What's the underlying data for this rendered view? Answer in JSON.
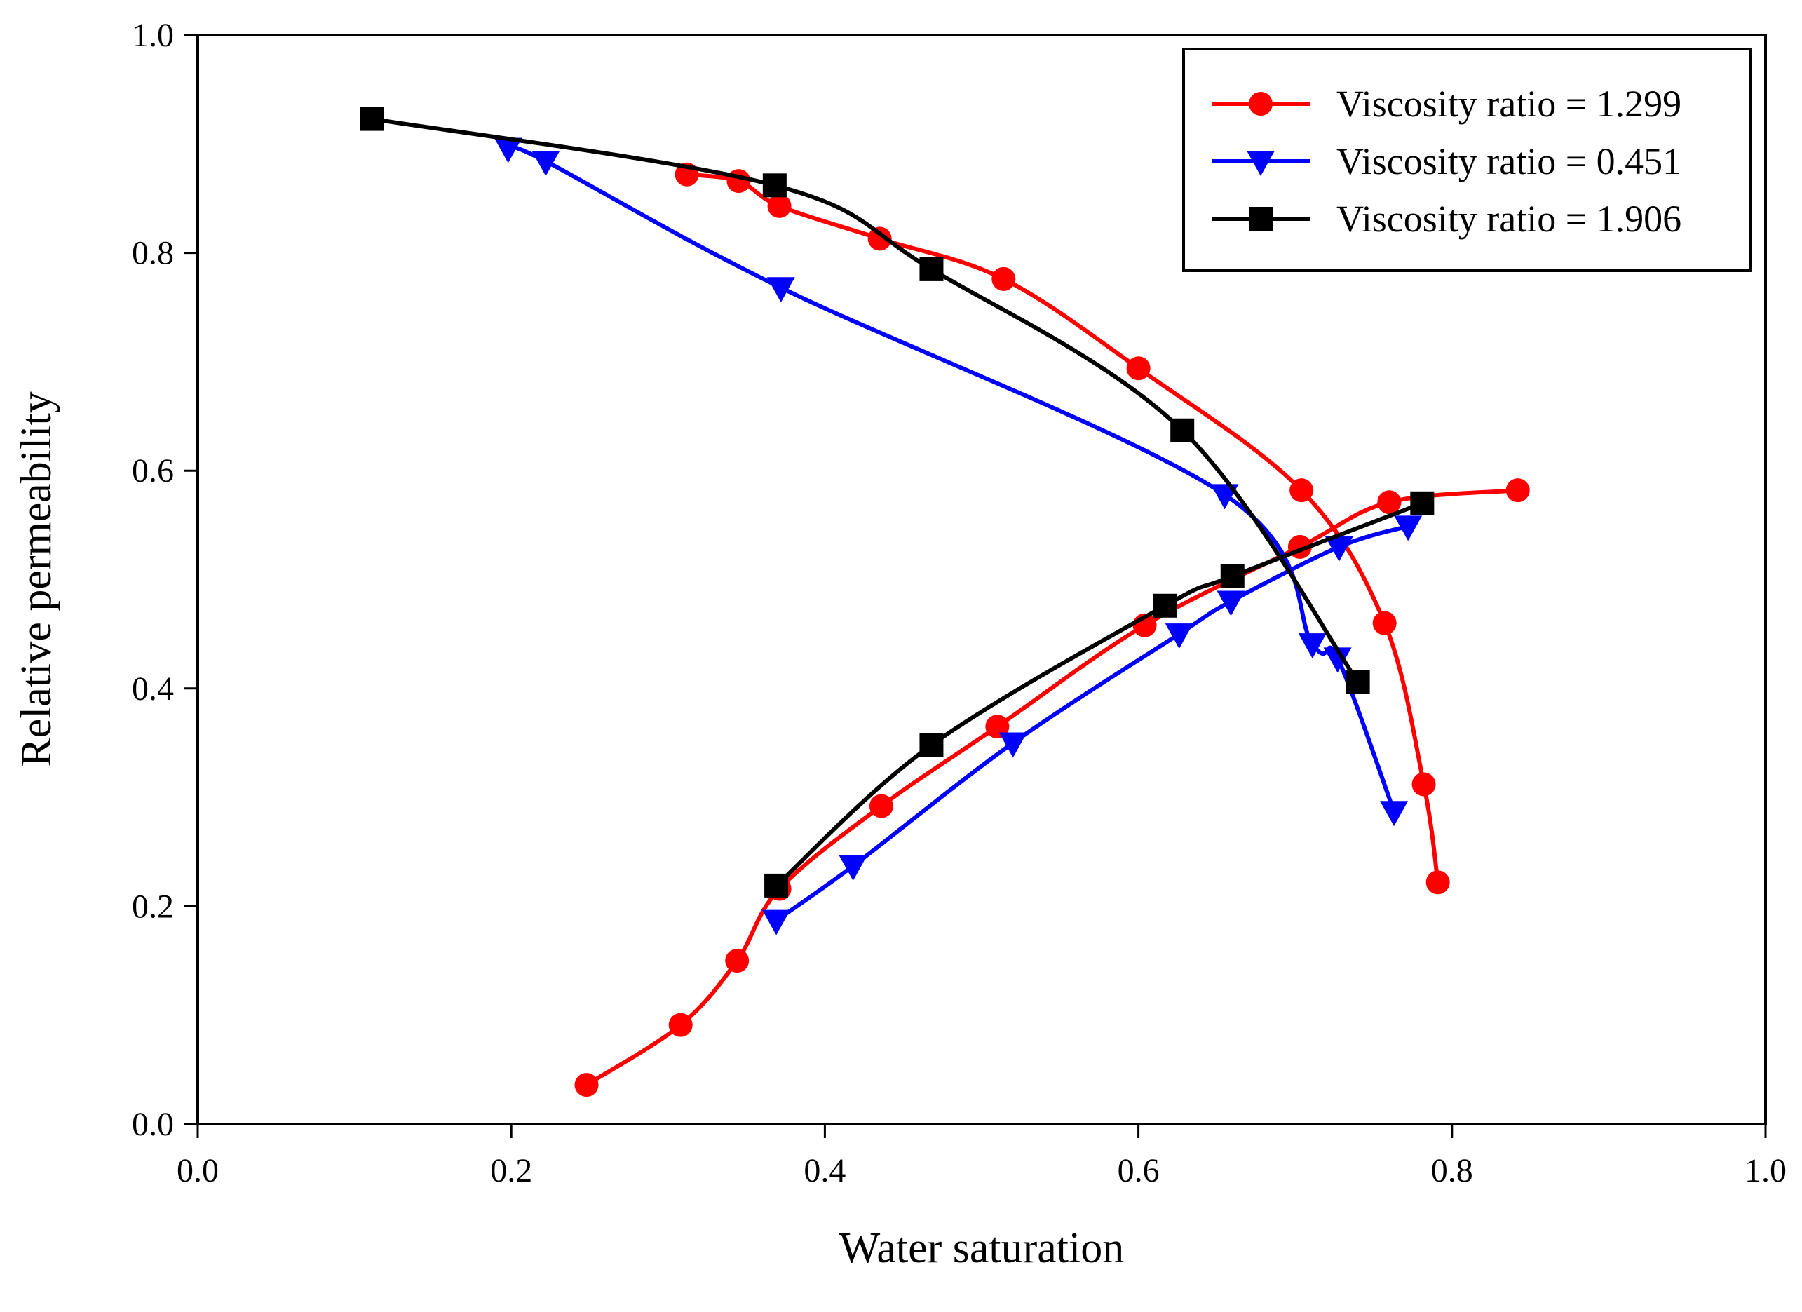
{
  "chart_data": {
    "type": "line",
    "title": "",
    "xlabel": "Water saturation",
    "ylabel": "Relative permeability",
    "xlim": [
      0.0,
      1.0
    ],
    "ylim": [
      0.0,
      1.0
    ],
    "xticks": [
      "0.0",
      "0.2",
      "0.4",
      "0.6",
      "0.8",
      "1.0"
    ],
    "yticks": [
      "0.0",
      "0.2",
      "0.4",
      "0.6",
      "0.8",
      "1.0"
    ],
    "grid": false,
    "legend_position": "top-right",
    "series": [
      {
        "name": "Viscosity ratio = 1.299",
        "color": "#ff0000",
        "marker": "circle",
        "curves": [
          {
            "kind": "oil",
            "points": [
              [
                0.312,
                0.872
              ],
              [
                0.345,
                0.866
              ],
              [
                0.371,
                0.843
              ],
              [
                0.435,
                0.813
              ],
              [
                0.514,
                0.776
              ],
              [
                0.6,
                0.694
              ],
              [
                0.704,
                0.582
              ],
              [
                0.757,
                0.46
              ],
              [
                0.782,
                0.312
              ],
              [
                0.791,
                0.222
              ]
            ]
          },
          {
            "kind": "water",
            "points": [
              [
                0.248,
                0.036
              ],
              [
                0.308,
                0.091
              ],
              [
                0.344,
                0.15
              ],
              [
                0.371,
                0.216
              ],
              [
                0.436,
                0.292
              ],
              [
                0.51,
                0.365
              ],
              [
                0.604,
                0.458
              ],
              [
                0.703,
                0.53
              ],
              [
                0.76,
                0.571
              ],
              [
                0.842,
                0.582
              ]
            ]
          }
        ]
      },
      {
        "name": "Viscosity ratio = 0.451",
        "color": "#0000ff",
        "marker": "triangle-down",
        "curves": [
          {
            "kind": "oil",
            "points": [
              [
                0.198,
                0.896
              ],
              [
                0.222,
                0.884
              ],
              [
                0.372,
                0.768
              ],
              [
                0.655,
                0.578
              ],
              [
                0.711,
                0.441
              ],
              [
                0.727,
                0.428
              ],
              [
                0.763,
                0.287
              ]
            ]
          },
          {
            "kind": "water",
            "points": [
              [
                0.369,
                0.187
              ],
              [
                0.418,
                0.237
              ],
              [
                0.52,
                0.35
              ],
              [
                0.626,
                0.45
              ],
              [
                0.659,
                0.48
              ],
              [
                0.728,
                0.53
              ],
              [
                0.772,
                0.549
              ]
            ]
          }
        ]
      },
      {
        "name": "Viscosity ratio = 1.906",
        "color": "#000000",
        "marker": "square",
        "curves": [
          {
            "kind": "oil",
            "points": [
              [
                0.111,
                0.923
              ],
              [
                0.368,
                0.862
              ],
              [
                0.468,
                0.785
              ],
              [
                0.628,
                0.637
              ],
              [
                0.74,
                0.406
              ]
            ]
          },
          {
            "kind": "water",
            "points": [
              [
                0.369,
                0.219
              ],
              [
                0.468,
                0.348
              ],
              [
                0.617,
                0.476
              ],
              [
                0.66,
                0.503
              ],
              [
                0.781,
                0.57
              ]
            ]
          }
        ]
      }
    ]
  }
}
